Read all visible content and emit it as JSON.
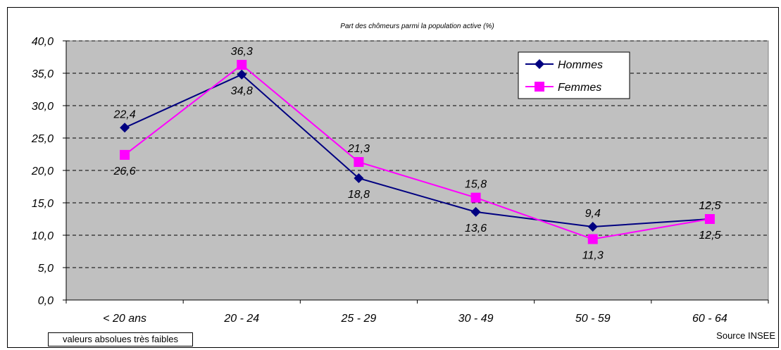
{
  "chart_data": {
    "type": "line",
    "title": "Part des chômeurs parmi la population active (%)",
    "categories": [
      "< 20 ans",
      "20 - 24",
      "25 - 29",
      "30 - 49",
      "50 - 59",
      "60 - 64"
    ],
    "series": [
      {
        "name": "Hommes",
        "values": [
          26.6,
          34.8,
          18.8,
          13.6,
          11.3,
          12.5
        ],
        "color": "#000080",
        "marker": "diamond"
      },
      {
        "name": "Femmes",
        "values": [
          22.4,
          36.3,
          21.3,
          15.8,
          9.4,
          12.5
        ],
        "color": "#FF00FF",
        "marker": "square"
      }
    ],
    "data_labels": [
      {
        "text": "22,4",
        "category": "< 20 ans",
        "y": 26.6
      },
      {
        "text": "26,6",
        "category": "< 20 ans",
        "y": 22.4
      },
      {
        "text": "36,3",
        "category": "20 - 24",
        "y": 36.3
      },
      {
        "text": "34,8",
        "category": "20 - 24",
        "y": 34.8
      },
      {
        "text": "21,3",
        "category": "25 - 29",
        "y": 21.3
      },
      {
        "text": "18,8",
        "category": "25 - 29",
        "y": 18.8
      },
      {
        "text": "15,8",
        "category": "30 - 49",
        "y": 15.8
      },
      {
        "text": "13,6",
        "category": "30 - 49",
        "y": 13.6
      },
      {
        "text": "9,4",
        "category": "50 - 59",
        "y": 11.3
      },
      {
        "text": "11,3",
        "category": "50 - 59",
        "y": 9.4
      },
      {
        "text": "12,5",
        "category": "60 - 64",
        "y": 12.5
      },
      {
        "text": "12,5",
        "category": "60 - 64",
        "y": 12.5
      }
    ],
    "y_ticks": [
      "0,0",
      "5,0",
      "10,0",
      "15,0",
      "20,0",
      "25,0",
      "30,0",
      "35,0",
      "40,0"
    ],
    "ylim": [
      0,
      40
    ],
    "y_step": 5,
    "grid": true,
    "plot_background": "#C0C0C0",
    "legend_position": "top-right"
  },
  "footer": {
    "note": "valeurs absolues très faibles",
    "source": "Source INSEE"
  }
}
